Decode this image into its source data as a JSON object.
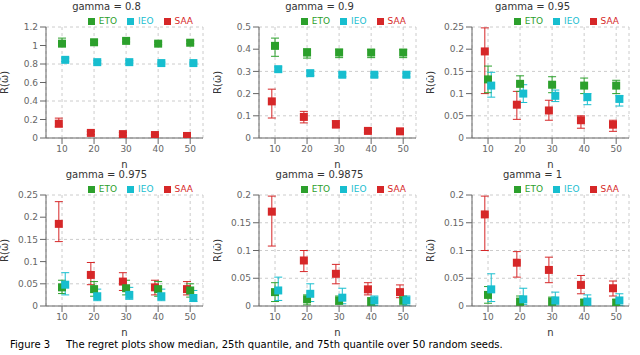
{
  "caption": "Figure 3     The regret plots show median, 25th quantile, and 75th quantile over 50 random seeds.",
  "chart_data": [
    {
      "type": "scatter",
      "title": "gamma = 0.8",
      "x_label": "n",
      "y_label": "R(ω̂)",
      "x": [
        10,
        20,
        30,
        40,
        50
      ],
      "xlim": [
        5,
        54
      ],
      "xticks": [
        10,
        20,
        30,
        40,
        50
      ],
      "ylim": [
        0,
        1.2
      ],
      "yticks": [
        0,
        0.2,
        0.4,
        0.6,
        0.8,
        1.0,
        1.2
      ],
      "grid": true,
      "legend": "upper right",
      "marker": "square",
      "series": [
        {
          "name": "SAA",
          "color": "#d62728",
          "values": [
            0.155,
            0.055,
            0.042,
            0.032,
            0.022
          ],
          "q25": [
            0.12,
            0.038,
            0.028,
            0.028,
            0.018
          ],
          "q75": [
            0.215,
            0.072,
            0.06,
            0.038,
            0.03
          ]
        },
        {
          "name": "ETO",
          "color": "#2ca02c",
          "values": [
            1.02,
            1.035,
            1.05,
            1.02,
            1.03
          ],
          "q25": [
            0.99,
            1.025,
            1.038,
            1.008,
            1.018
          ],
          "q75": [
            1.08,
            1.058,
            1.07,
            1.038,
            1.05
          ]
        },
        {
          "name": "IEO",
          "color": "#17becf",
          "values": [
            0.845,
            0.82,
            0.82,
            0.81,
            0.81
          ],
          "q25": [
            0.828,
            0.81,
            0.81,
            0.8,
            0.8
          ],
          "q75": [
            0.865,
            0.835,
            0.835,
            0.82,
            0.82
          ]
        }
      ]
    },
    {
      "type": "scatter",
      "title": "gamma = 0.9",
      "x_label": "n",
      "y_label": "R(ω̂)",
      "x": [
        10,
        20,
        30,
        40,
        50
      ],
      "xlim": [
        5,
        54
      ],
      "xticks": [
        10,
        20,
        30,
        40,
        50
      ],
      "ylim": [
        0,
        0.5
      ],
      "yticks": [
        0,
        0.1,
        0.2,
        0.3,
        0.4,
        0.5
      ],
      "grid": true,
      "legend": "upper right",
      "marker": "square",
      "series": [
        {
          "name": "SAA",
          "color": "#d62728",
          "values": [
            0.165,
            0.095,
            0.062,
            0.032,
            0.03
          ],
          "q25": [
            0.09,
            0.068,
            0.045,
            0.025,
            0.02
          ],
          "q75": [
            0.22,
            0.12,
            0.078,
            0.04,
            0.038
          ]
        },
        {
          "name": "ETO",
          "color": "#2ca02c",
          "values": [
            0.415,
            0.385,
            0.385,
            0.385,
            0.385
          ],
          "q25": [
            0.368,
            0.36,
            0.362,
            0.362,
            0.362
          ],
          "q75": [
            0.45,
            0.402,
            0.4,
            0.398,
            0.398
          ]
        },
        {
          "name": "IEO",
          "color": "#17becf",
          "values": [
            0.31,
            0.292,
            0.285,
            0.285,
            0.285
          ],
          "q25": [
            0.298,
            0.282,
            0.276,
            0.275,
            0.275
          ],
          "q75": [
            0.32,
            0.302,
            0.293,
            0.292,
            0.292
          ]
        }
      ]
    },
    {
      "type": "scatter",
      "title": "gamma = 0.95",
      "x_label": "n",
      "y_label": "R(ω̂)",
      "x": [
        10,
        20,
        30,
        40,
        50
      ],
      "xlim": [
        5,
        54
      ],
      "xticks": [
        10,
        20,
        30,
        40,
        50
      ],
      "ylim": [
        0,
        0.25
      ],
      "yticks": [
        0,
        0.05,
        0.1,
        0.15,
        0.2,
        0.25
      ],
      "grid": true,
      "legend": "upper right",
      "marker": "square",
      "series": [
        {
          "name": "SAA",
          "color": "#d62728",
          "values": [
            0.195,
            0.075,
            0.062,
            0.04,
            0.03
          ],
          "q25": [
            0.1,
            0.042,
            0.04,
            0.022,
            0.015
          ],
          "q75": [
            0.248,
            0.105,
            0.085,
            0.05,
            0.04
          ]
        },
        {
          "name": "ETO",
          "color": "#2ca02c",
          "values": [
            0.132,
            0.122,
            0.12,
            0.118,
            0.118
          ],
          "q25": [
            0.102,
            0.105,
            0.102,
            0.1,
            0.1
          ],
          "q75": [
            0.162,
            0.14,
            0.138,
            0.135,
            0.13
          ]
        },
        {
          "name": "IEO",
          "color": "#17becf",
          "values": [
            0.118,
            0.1,
            0.095,
            0.092,
            0.088
          ],
          "q25": [
            0.092,
            0.08,
            0.082,
            0.075,
            0.072
          ],
          "q75": [
            0.148,
            0.12,
            0.108,
            0.1,
            0.095
          ]
        }
      ]
    },
    {
      "type": "scatter",
      "title": "gamma = 0.975",
      "x_label": "n",
      "y_label": "R(ω̂)",
      "x": [
        10,
        20,
        30,
        40,
        50
      ],
      "xlim": [
        5,
        54
      ],
      "xticks": [
        10,
        20,
        30,
        40,
        50
      ],
      "ylim": [
        0,
        0.25
      ],
      "yticks": [
        0,
        0.05,
        0.1,
        0.15,
        0.2,
        0.25
      ],
      "grid": true,
      "legend": "upper right",
      "marker": "square",
      "series": [
        {
          "name": "SAA",
          "color": "#d62728",
          "values": [
            0.185,
            0.07,
            0.055,
            0.042,
            0.038
          ],
          "q25": [
            0.145,
            0.048,
            0.035,
            0.025,
            0.025
          ],
          "q75": [
            0.235,
            0.098,
            0.075,
            0.058,
            0.055
          ]
        },
        {
          "name": "ETO",
          "color": "#2ca02c",
          "values": [
            0.042,
            0.038,
            0.04,
            0.038,
            0.035
          ],
          "q25": [
            0.028,
            0.022,
            0.025,
            0.022,
            0.02
          ],
          "q75": [
            0.058,
            0.055,
            0.058,
            0.055,
            0.05
          ]
        },
        {
          "name": "IEO",
          "color": "#17becf",
          "values": [
            0.048,
            0.022,
            0.025,
            0.022,
            0.018
          ],
          "q25": [
            0.025,
            0.012,
            0.015,
            0.012,
            0.01
          ],
          "q75": [
            0.075,
            0.038,
            0.042,
            0.038,
            0.035
          ]
        }
      ]
    },
    {
      "type": "scatter",
      "title": "gamma = 0.9875",
      "x_label": "n",
      "y_label": "R(ω̂)",
      "x": [
        10,
        20,
        30,
        40,
        50
      ],
      "xlim": [
        5,
        54
      ],
      "xticks": [
        10,
        20,
        30,
        40,
        50
      ],
      "ylim": [
        0,
        0.2
      ],
      "yticks": [
        0,
        0.05,
        0.1,
        0.15,
        0.2
      ],
      "grid": true,
      "legend": "upper right",
      "marker": "square",
      "series": [
        {
          "name": "SAA",
          "color": "#d62728",
          "values": [
            0.17,
            0.082,
            0.058,
            0.03,
            0.025
          ],
          "q25": [
            0.108,
            0.062,
            0.04,
            0.02,
            0.015
          ],
          "q75": [
            0.198,
            0.1,
            0.075,
            0.042,
            0.038
          ]
        },
        {
          "name": "ETO",
          "color": "#2ca02c",
          "values": [
            0.025,
            0.012,
            0.01,
            0.008,
            0.01
          ],
          "q25": [
            0.008,
            0.002,
            0.003,
            0.001,
            0.002
          ],
          "q75": [
            0.042,
            0.02,
            0.018,
            0.015,
            0.018
          ]
        },
        {
          "name": "IEO",
          "color": "#17becf",
          "values": [
            0.028,
            0.022,
            0.015,
            0.01,
            0.01
          ],
          "q25": [
            0.01,
            0.008,
            0.004,
            0.001,
            0.001
          ],
          "q75": [
            0.052,
            0.04,
            0.032,
            0.018,
            0.018
          ]
        }
      ]
    },
    {
      "type": "scatter",
      "title": "gamma = 1",
      "x_label": "n",
      "y_label": "R(ω̂)",
      "x": [
        10,
        20,
        30,
        40,
        50
      ],
      "xlim": [
        5,
        54
      ],
      "xticks": [
        10,
        20,
        30,
        40,
        50
      ],
      "ylim": [
        0,
        0.2
      ],
      "yticks": [
        0,
        0.05,
        0.1,
        0.15,
        0.2
      ],
      "grid": true,
      "legend": "upper right",
      "marker": "square",
      "series": [
        {
          "name": "SAA",
          "color": "#d62728",
          "values": [
            0.165,
            0.078,
            0.065,
            0.038,
            0.032
          ],
          "q25": [
            0.1,
            0.052,
            0.042,
            0.022,
            0.018
          ],
          "q75": [
            0.198,
            0.098,
            0.088,
            0.055,
            0.045
          ]
        },
        {
          "name": "ETO",
          "color": "#2ca02c",
          "values": [
            0.02,
            0.008,
            0.008,
            0.006,
            0.006
          ],
          "q25": [
            0.005,
            0.001,
            0.001,
            0.001,
            0.001
          ],
          "q75": [
            0.035,
            0.018,
            0.016,
            0.012,
            0.012
          ]
        },
        {
          "name": "IEO",
          "color": "#17becf",
          "values": [
            0.03,
            0.012,
            0.01,
            0.008,
            0.01
          ],
          "q25": [
            0.008,
            0.003,
            0.002,
            0.001,
            0.001
          ],
          "q75": [
            0.058,
            0.032,
            0.025,
            0.02,
            0.022
          ]
        }
      ]
    }
  ]
}
